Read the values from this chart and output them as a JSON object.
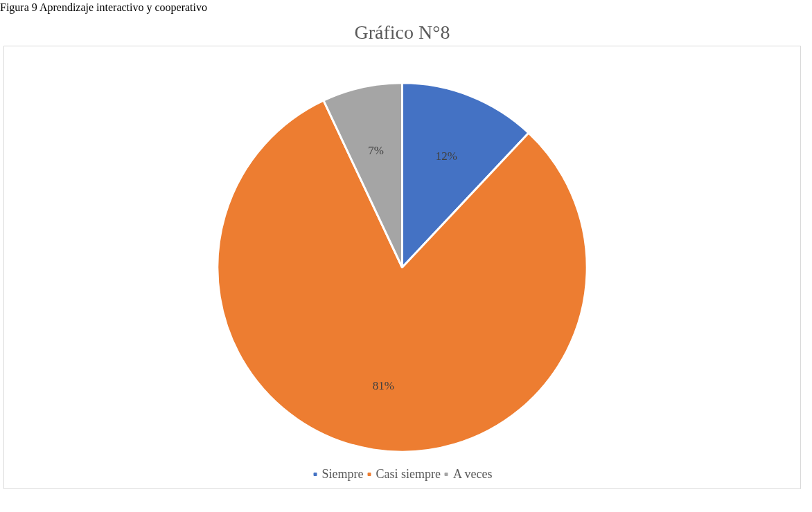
{
  "chart_data": {
    "type": "pie",
    "title": "Gráfico N°8",
    "annotations": [
      "Figura 9 Aprendizaje interactivo y cooperativo"
    ],
    "categories": [
      "Siempre",
      "Casi siempre",
      "A veces"
    ],
    "values": [
      12,
      81,
      7
    ],
    "colors": [
      "#4472c4",
      "#ed7d31",
      "#a5a5a5"
    ],
    "value_labels": [
      "12%",
      "81%",
      "7%"
    ],
    "legend": "bottom"
  }
}
